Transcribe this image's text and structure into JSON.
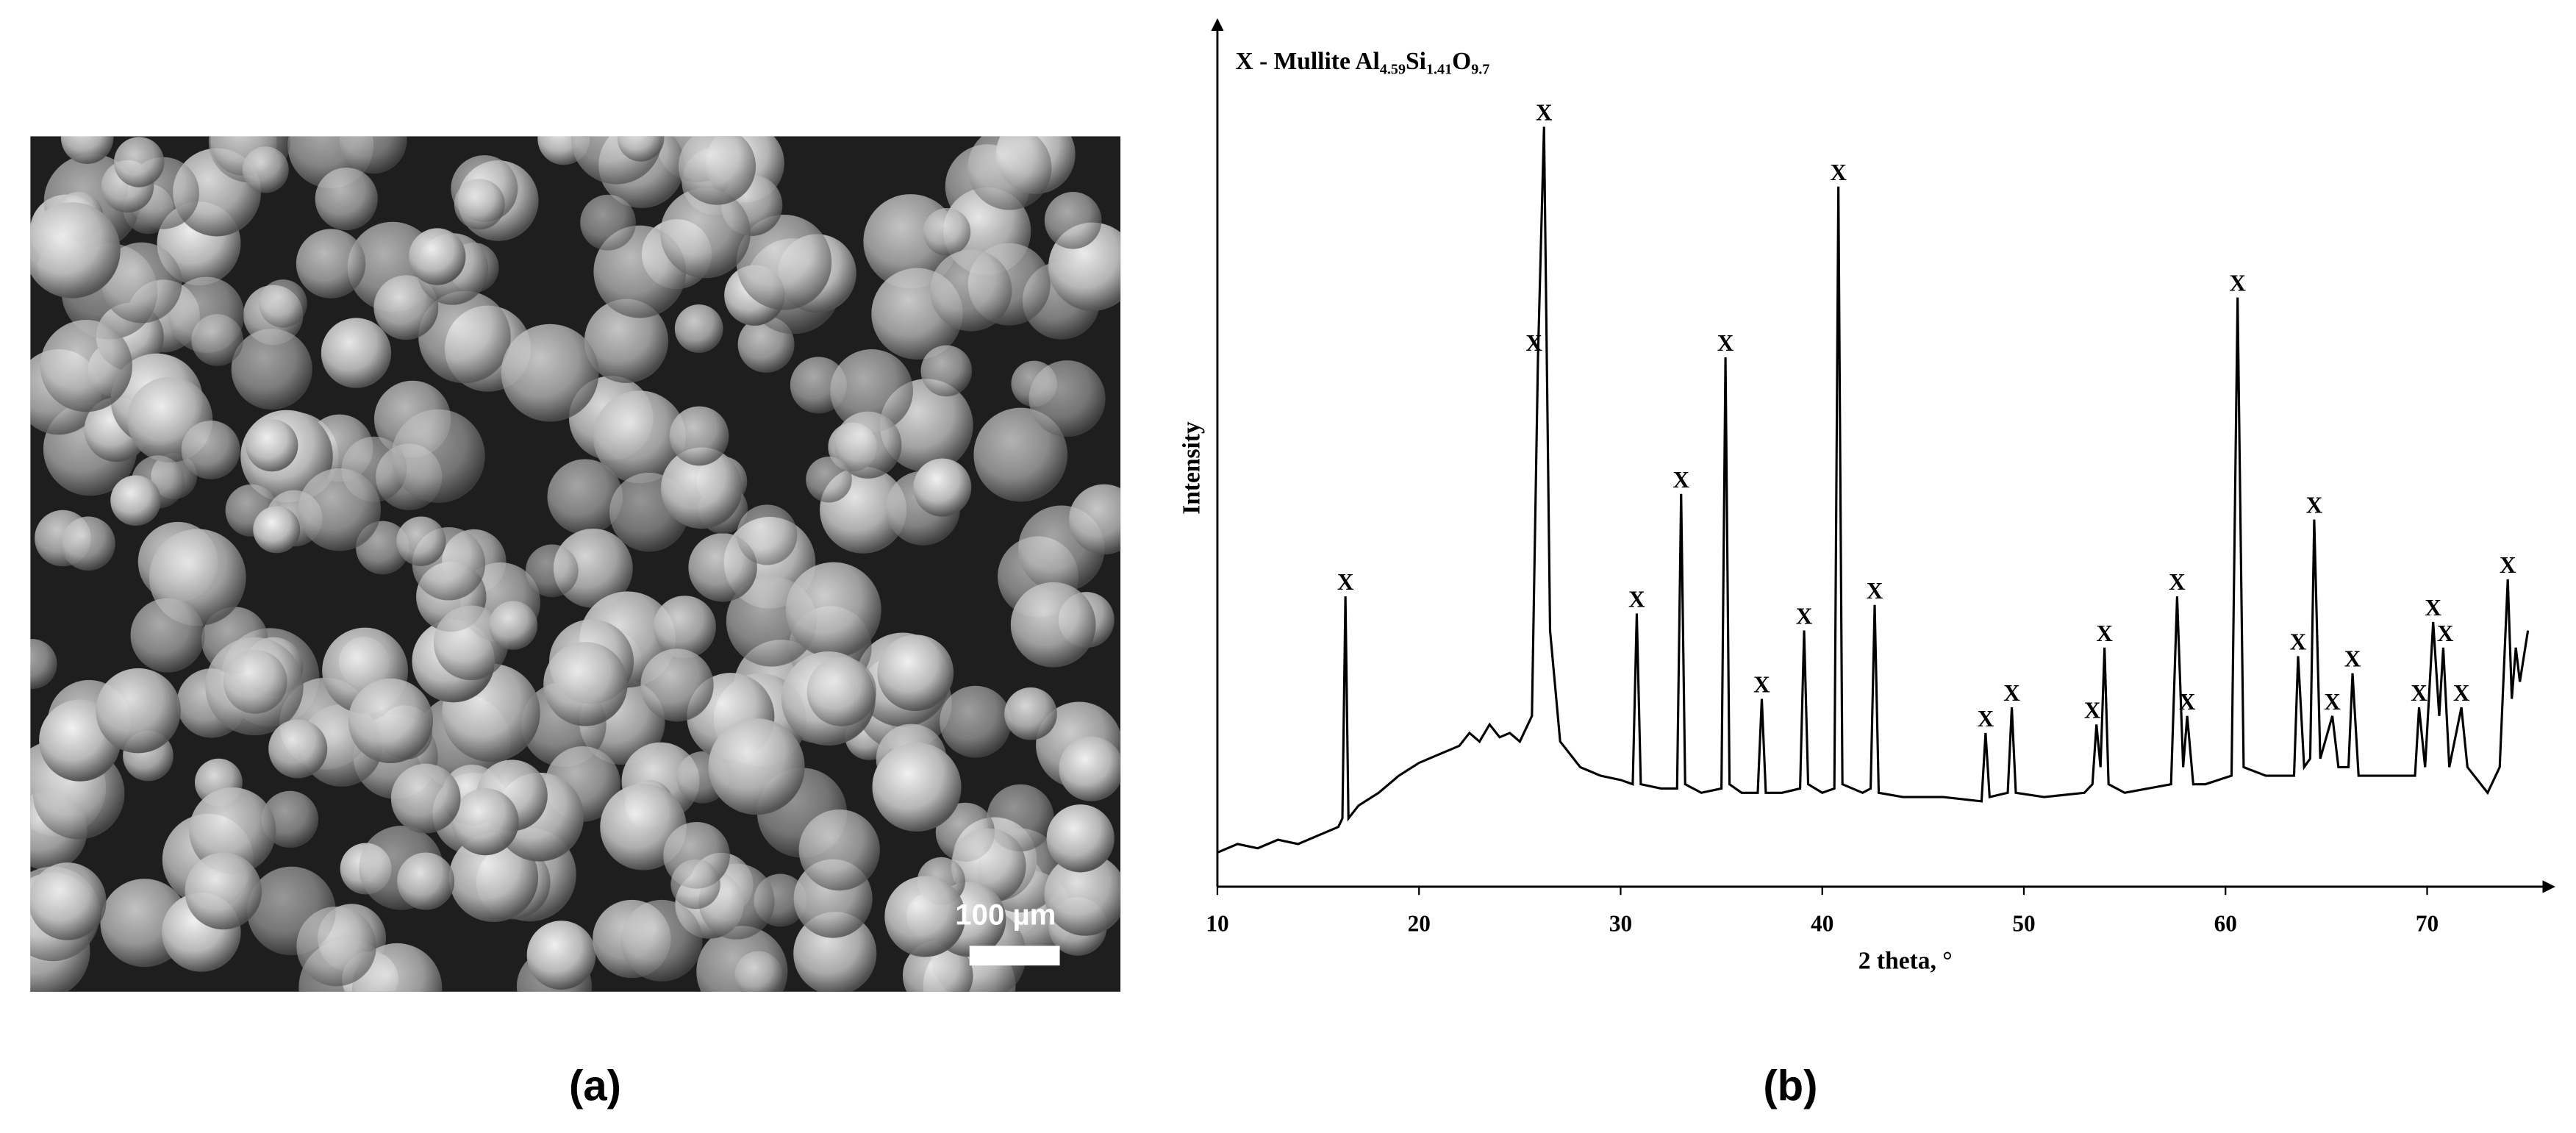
{
  "panel_a": {
    "scale_bar_label": "100 µm",
    "caption": "(a)"
  },
  "chart_data": {
    "type": "line",
    "caption": "(b)",
    "legend_parts": [
      "X - Mullite Al",
      "4.59",
      "Si",
      "1.41",
      "O",
      "9.7"
    ],
    "xlabel": "2 theta, °",
    "ylabel": "Intensity",
    "xlim": [
      10,
      75
    ],
    "ylim": [
      0,
      100
    ],
    "xticks": [
      10,
      20,
      30,
      40,
      50,
      60,
      70
    ],
    "color": "#000000",
    "x": [
      10,
      11,
      12,
      13,
      14,
      15,
      16,
      16.2,
      16.35,
      16.5,
      17,
      18,
      19,
      20,
      21,
      22,
      22.5,
      23,
      23.5,
      24,
      24.5,
      25,
      25.6,
      25.9,
      26.2,
      26.5,
      27,
      28,
      29,
      30,
      30.6,
      30.8,
      31,
      32,
      32.8,
      33,
      33.2,
      34,
      35,
      35.2,
      35.4,
      36,
      36.8,
      37,
      37.2,
      38,
      38.9,
      39.1,
      39.3,
      40,
      40.6,
      40.8,
      41,
      42,
      42.4,
      42.6,
      42.8,
      44,
      46,
      47.9,
      48.1,
      48.3,
      49.2,
      49.4,
      49.6,
      51,
      53,
      53.4,
      53.6,
      53.8,
      54,
      54.2,
      55,
      57.3,
      57.6,
      57.9,
      58.1,
      58.4,
      59,
      60.3,
      60.6,
      60.9,
      62,
      63.4,
      63.6,
      63.9,
      64.2,
      64.4,
      64.7,
      65.3,
      65.6,
      66.1,
      66.3,
      66.6,
      68,
      69.4,
      69.6,
      69.9,
      70.3,
      70.6,
      70.8,
      71.1,
      71.7,
      72,
      73,
      73.6,
      74,
      74.2,
      74.4,
      74.6,
      75
    ],
    "values": [
      4,
      5,
      4.5,
      5.5,
      5,
      6,
      7,
      8,
      34,
      8,
      9.5,
      11,
      13,
      14.5,
      15.5,
      16.5,
      18,
      17,
      19,
      17.5,
      18,
      17,
      20,
      62,
      89,
      30,
      17,
      14,
      13,
      12.5,
      12,
      32,
      12,
      11.5,
      11.5,
      46,
      12,
      11,
      11.5,
      62,
      12,
      11,
      11,
      22,
      11,
      11,
      11.5,
      30,
      12,
      11,
      11.5,
      82,
      12,
      11,
      11.5,
      33,
      11,
      10.5,
      10.5,
      10,
      18,
      10.5,
      11,
      21,
      11,
      10.5,
      11,
      12,
      19,
      14,
      28,
      12,
      11,
      12,
      34,
      14,
      20,
      12,
      12,
      13,
      69,
      14,
      13,
      13,
      27,
      14,
      15,
      43,
      15,
      20,
      14,
      14,
      25,
      13,
      13,
      13,
      21,
      14,
      31,
      20,
      28,
      14,
      21,
      14,
      11,
      14,
      36,
      22,
      28,
      24,
      30
    ],
    "annotations": [
      {
        "x": 16.35,
        "y": 34,
        "text": "X"
      },
      {
        "x": 25.7,
        "y": 62,
        "text": "X"
      },
      {
        "x": 26.2,
        "y": 89,
        "text": "X"
      },
      {
        "x": 30.8,
        "y": 32,
        "text": "X"
      },
      {
        "x": 33,
        "y": 46,
        "text": "X"
      },
      {
        "x": 35.2,
        "y": 62,
        "text": "X"
      },
      {
        "x": 37,
        "y": 22,
        "text": "X"
      },
      {
        "x": 39.1,
        "y": 30,
        "text": "X"
      },
      {
        "x": 40.8,
        "y": 82,
        "text": "X"
      },
      {
        "x": 42.6,
        "y": 33,
        "text": "X"
      },
      {
        "x": 48.1,
        "y": 18,
        "text": "X"
      },
      {
        "x": 49.4,
        "y": 21,
        "text": "X"
      },
      {
        "x": 53.4,
        "y": 19,
        "text": "X"
      },
      {
        "x": 54,
        "y": 28,
        "text": "X"
      },
      {
        "x": 57.6,
        "y": 34,
        "text": "X"
      },
      {
        "x": 58.1,
        "y": 20,
        "text": "X"
      },
      {
        "x": 60.6,
        "y": 69,
        "text": "X"
      },
      {
        "x": 63.6,
        "y": 27,
        "text": "X"
      },
      {
        "x": 64.4,
        "y": 43,
        "text": "X"
      },
      {
        "x": 65.3,
        "y": 20,
        "text": "X"
      },
      {
        "x": 66.3,
        "y": 25,
        "text": "X"
      },
      {
        "x": 69.6,
        "y": 21,
        "text": "X"
      },
      {
        "x": 70.3,
        "y": 31,
        "text": "X"
      },
      {
        "x": 70.9,
        "y": 28,
        "text": "X"
      },
      {
        "x": 71.7,
        "y": 21,
        "text": "X"
      },
      {
        "x": 74,
        "y": 36,
        "text": "X"
      }
    ]
  }
}
